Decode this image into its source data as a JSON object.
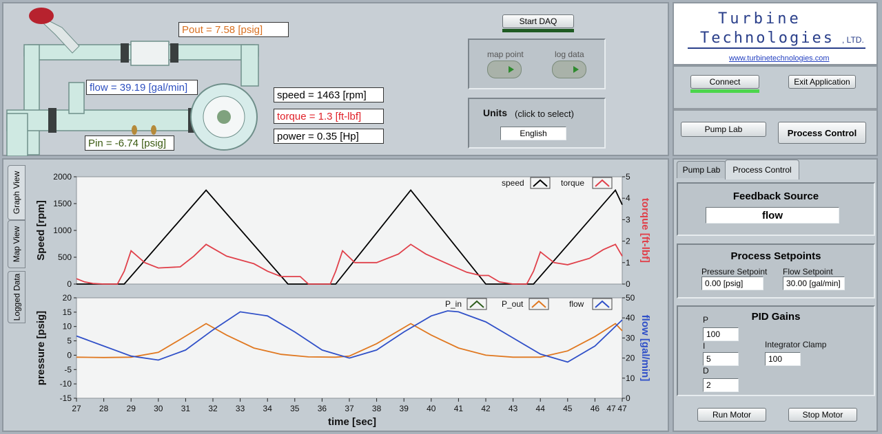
{
  "pump": {
    "pout": "Pout = 7.58 [psig]",
    "flow": "flow = 39.19 [gal/min]",
    "pin": "Pin =  -6.74 [psig]",
    "speed": "speed = 1463 [rpm]",
    "torque": "torque = 1.3 [ft-lbf]",
    "power": "power = 0.35 [Hp]"
  },
  "daq": {
    "start_label": "Start DAQ",
    "map_point": "map point",
    "log_data": "log data"
  },
  "units": {
    "title": "Units",
    "hint": "(click to select)",
    "value": "English"
  },
  "logo": {
    "line1": "Turbine",
    "line2": "Technologies",
    "suffix": ", LTD.",
    "url": "www.turbinetechnologies.com"
  },
  "controls": {
    "connect": "Connect",
    "exit": "Exit Application",
    "pump_lab": "Pump Lab",
    "process_control": "Process Control"
  },
  "side_tabs": {
    "graph": "Graph View",
    "map": "Map View",
    "logged": "Logged Data"
  },
  "right_tabs": {
    "pump_lab": "Pump Lab",
    "process_control": "Process Control"
  },
  "feedback": {
    "title": "Feedback Source",
    "value": "flow"
  },
  "setpoints": {
    "title": "Process Setpoints",
    "pressure_label": "Pressure Setpoint",
    "pressure_value": "0.00 [psig]",
    "flow_label": "Flow Setpoint",
    "flow_value": "30.00 [gal/min]"
  },
  "pid": {
    "title": "PID Gains",
    "p_label": "P",
    "p_value": "100",
    "i_label": "I",
    "i_value": "5",
    "d_label": "D",
    "d_value": "2",
    "clamp_label": "Integrator Clamp",
    "clamp_value": "100"
  },
  "motor": {
    "run": "Run Motor",
    "stop": "Stop Motor"
  },
  "colors": {
    "speed": "#000000",
    "torque": "#e0404a",
    "p_in": "#2f5e1e",
    "p_out": "#e07820",
    "flow": "#3050c8"
  },
  "chart_data": [
    {
      "type": "line",
      "ylabel": "Speed [rpm]",
      "y2label": "torque [ft-lbf]",
      "xlim": [
        27,
        47
      ],
      "ylim": [
        0,
        2000
      ],
      "y2lim": [
        0,
        5
      ],
      "yticks": [
        "2000",
        "1500",
        "1000",
        "500",
        "0"
      ],
      "y2ticks": [
        "5",
        "4",
        "3",
        "2",
        "1",
        "0"
      ],
      "legend": "top-right",
      "series": [
        {
          "name": "speed",
          "axis": "left",
          "x": [
            27,
            28.5,
            28.75,
            31.75,
            34.75,
            35.5,
            36.0,
            36.5,
            39.25,
            42.0,
            43,
            43.75,
            46.75,
            47
          ],
          "y": [
            0,
            0,
            0,
            1750,
            0,
            0,
            0,
            0,
            1750,
            0,
            0,
            0,
            1750,
            1480
          ]
        },
        {
          "name": "torque",
          "axis": "right",
          "x": [
            27,
            27.3,
            27.6,
            28,
            28.5,
            28.75,
            29.0,
            29.5,
            30,
            30.8,
            31.3,
            31.75,
            32.5,
            33.5,
            34,
            34.5,
            34.9,
            35.2,
            35.5,
            36.0,
            36.3,
            36.5,
            36.75,
            37.2,
            38,
            38.8,
            39.25,
            39.8,
            40.5,
            41.3,
            41.8,
            42.1,
            42.5,
            43,
            43.5,
            43.75,
            44.0,
            44.5,
            45,
            45.8,
            46.3,
            46.75,
            47
          ],
          "y": [
            0.25,
            0.1,
            0.03,
            0,
            0,
            0.6,
            1.55,
            1.0,
            0.75,
            0.8,
            1.3,
            1.85,
            1.3,
            0.95,
            0.6,
            0.35,
            0.35,
            0.35,
            0,
            0,
            0,
            0.6,
            1.55,
            1.0,
            1.0,
            1.4,
            1.85,
            1.4,
            1.0,
            0.55,
            0.4,
            0.4,
            0.1,
            0,
            0,
            0.6,
            1.5,
            1.0,
            0.9,
            1.2,
            1.6,
            1.85,
            1.3
          ]
        }
      ]
    },
    {
      "type": "line",
      "ylabel": "pressure [psig]",
      "y2label": "flow [gal/min]",
      "xlabel": "time [sec]",
      "xlim": [
        27,
        47
      ],
      "xticks": [
        "27",
        "28",
        "29",
        "30",
        "31",
        "32",
        "33",
        "34",
        "35",
        "36",
        "37",
        "38",
        "39",
        "40",
        "41",
        "42",
        "43",
        "44",
        "45",
        "46",
        "47"
      ],
      "xtick_end": "47",
      "ylim": [
        -15,
        20
      ],
      "y2lim": [
        0,
        50
      ],
      "yticks": [
        "20",
        "15",
        "10",
        "5",
        "0",
        "-5",
        "-10",
        "-15"
      ],
      "y2ticks": [
        "50",
        "40",
        "30",
        "20",
        "10",
        "0"
      ],
      "legend": "top-right",
      "series": [
        {
          "name": "P_in",
          "axis": "left",
          "x": [],
          "y": []
        },
        {
          "name": "P_out",
          "axis": "left",
          "x": [
            27,
            28,
            29,
            30,
            30.8,
            31.75,
            32.5,
            33.5,
            34.5,
            35.5,
            36.5,
            37,
            38,
            39.25,
            40,
            41,
            42,
            43,
            44,
            45,
            46,
            46.75,
            47
          ],
          "y": [
            -0.7,
            -0.8,
            -0.7,
            1.0,
            5.5,
            11.0,
            7.0,
            2.5,
            0.3,
            -0.6,
            -0.7,
            -0.3,
            4.0,
            11.0,
            7.0,
            2.5,
            0,
            -0.7,
            -0.7,
            1.5,
            6.5,
            11.0,
            8.5
          ]
        },
        {
          "name": "flow",
          "axis": "right",
          "x": [
            27,
            28,
            29,
            30,
            31,
            32,
            33,
            34,
            35,
            36,
            37,
            38,
            39,
            40,
            40.6,
            41,
            42,
            43,
            44,
            45,
            46,
            47
          ],
          "y": [
            31,
            26,
            21,
            19,
            24,
            34,
            43,
            41,
            33,
            24,
            20,
            24,
            33,
            41,
            43.5,
            43,
            38,
            30,
            22,
            18,
            26,
            39
          ]
        }
      ]
    }
  ]
}
